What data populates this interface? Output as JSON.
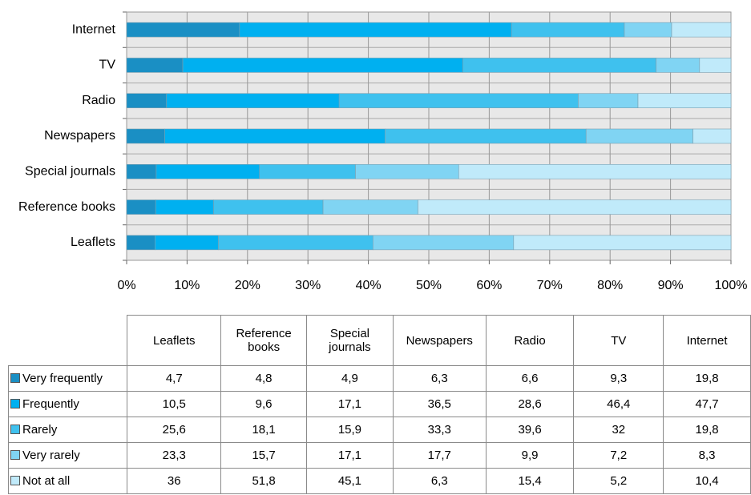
{
  "chart_data": {
    "type": "bar",
    "orientation": "horizontal",
    "stacking": "percent",
    "categories": [
      "Leaflets",
      "Reference books",
      "Special journals",
      "Newspapers",
      "Radio",
      "TV",
      "Internet"
    ],
    "series": [
      {
        "name": "Very frequently",
        "color": "#1a8fc4",
        "values": [
          4.7,
          4.8,
          4.9,
          6.3,
          6.6,
          9.3,
          19.8
        ],
        "value_labels": [
          "4,7",
          "4,8",
          "4,9",
          "6,3",
          "6,6",
          "9,3",
          "19,8"
        ]
      },
      {
        "name": "Frequently",
        "color": "#00b0f0",
        "values": [
          10.5,
          9.6,
          17.1,
          36.5,
          28.6,
          46.4,
          47.7
        ],
        "value_labels": [
          "10,5",
          "9,6",
          "17,1",
          "36,5",
          "28,6",
          "46,4",
          "47,7"
        ]
      },
      {
        "name": "Rarely",
        "color": "#3fc1ee",
        "values": [
          25.6,
          18.1,
          15.9,
          33.3,
          39.6,
          32,
          19.8
        ],
        "value_labels": [
          "25,6",
          "18,1",
          "15,9",
          "33,3",
          "39,6",
          "32",
          "19,8"
        ]
      },
      {
        "name": "Very rarely",
        "color": "#80d4f3",
        "values": [
          23.3,
          15.7,
          17.1,
          17.7,
          9.9,
          7.2,
          8.3
        ],
        "value_labels": [
          "23,3",
          "15,7",
          "17,1",
          "17,7",
          "9,9",
          "7,2",
          "8,3"
        ]
      },
      {
        "name": "Not at all",
        "color": "#c0eafa",
        "values": [
          36,
          51.8,
          45.1,
          6.3,
          15.4,
          5.2,
          10.4
        ],
        "value_labels": [
          "36",
          "51,8",
          "45,1",
          "6,3",
          "15,4",
          "5,2",
          "10,4"
        ]
      }
    ],
    "xlim": [
      0,
      100
    ],
    "xticks": [
      {
        "value": 0,
        "label": "0%"
      },
      {
        "value": 10,
        "label": "10%"
      },
      {
        "value": 20,
        "label": "20%"
      },
      {
        "value": 30,
        "label": "30%"
      },
      {
        "value": 40,
        "label": "40%"
      },
      {
        "value": 50,
        "label": "50%"
      },
      {
        "value": 60,
        "label": "60%"
      },
      {
        "value": 70,
        "label": "70%"
      },
      {
        "value": 80,
        "label": "80%"
      },
      {
        "value": 90,
        "label": "90%"
      },
      {
        "value": 100,
        "label": "100%"
      }
    ],
    "grid": true,
    "data_table": true
  }
}
